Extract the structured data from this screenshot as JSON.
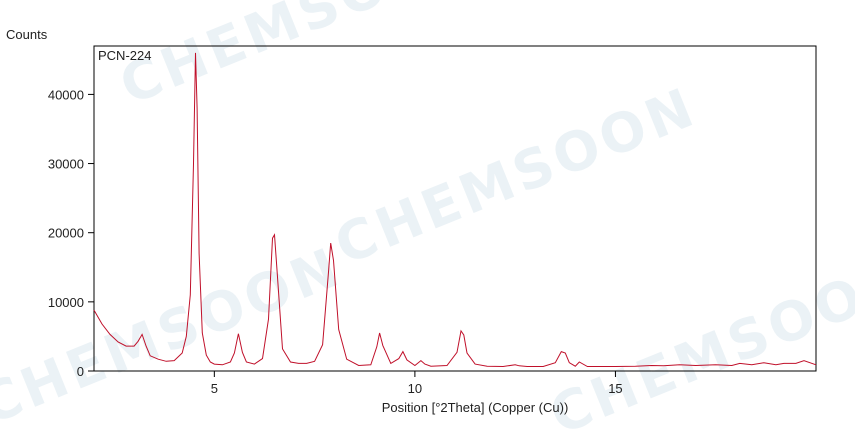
{
  "watermark": "CHEMSOON",
  "colors": {
    "line": "#c0102a",
    "axis": "#000000",
    "background": "#ffffff"
  },
  "chart_data": {
    "type": "line",
    "legend_label": "PCN-224",
    "legend_position": "top-left",
    "xlabel": "Position [°2Theta] (Copper (Cu))",
    "ylabel": "Counts",
    "xlim": [
      2.0,
      20.0
    ],
    "ylim": [
      0,
      47000
    ],
    "x_ticks": [
      5,
      10,
      15
    ],
    "y_ticks": [
      0,
      10000,
      20000,
      30000,
      40000
    ],
    "grid": false,
    "series": [
      {
        "name": "PCN-224",
        "x": [
          2.0,
          2.2,
          2.4,
          2.6,
          2.8,
          3.0,
          3.1,
          3.2,
          3.3,
          3.4,
          3.6,
          3.8,
          4.0,
          4.2,
          4.3,
          4.4,
          4.48,
          4.53,
          4.57,
          4.62,
          4.7,
          4.8,
          4.9,
          5.0,
          5.2,
          5.4,
          5.5,
          5.6,
          5.7,
          5.8,
          6.0,
          6.2,
          6.35,
          6.45,
          6.5,
          6.57,
          6.7,
          6.9,
          7.1,
          7.3,
          7.5,
          7.7,
          7.85,
          7.9,
          7.97,
          8.1,
          8.3,
          8.6,
          8.9,
          9.05,
          9.12,
          9.2,
          9.4,
          9.6,
          9.7,
          9.8,
          10.0,
          10.15,
          10.25,
          10.4,
          10.8,
          11.05,
          11.15,
          11.22,
          11.3,
          11.5,
          11.8,
          12.2,
          12.5,
          12.6,
          12.8,
          13.2,
          13.5,
          13.65,
          13.75,
          13.85,
          14.0,
          14.1,
          14.3,
          15.0,
          15.5,
          15.9,
          16.2,
          16.6,
          17.0,
          17.5,
          17.9,
          18.1,
          18.4,
          18.7,
          19.0,
          19.2,
          19.5,
          19.7,
          20.0
        ],
        "y": [
          8800,
          6800,
          5300,
          4200,
          3600,
          3600,
          4300,
          5300,
          3600,
          2200,
          1700,
          1400,
          1500,
          2600,
          5000,
          11000,
          30000,
          46000,
          38000,
          17000,
          5500,
          2300,
          1300,
          1000,
          900,
          1300,
          2600,
          5400,
          2700,
          1300,
          1000,
          1800,
          7500,
          19200,
          19700,
          14000,
          3200,
          1300,
          1100,
          1100,
          1400,
          3800,
          14500,
          18500,
          16000,
          6000,
          1700,
          800,
          900,
          3500,
          5500,
          3700,
          1100,
          1800,
          2800,
          1600,
          800,
          1500,
          1000,
          700,
          800,
          2700,
          5800,
          5200,
          2600,
          1000,
          700,
          650,
          900,
          750,
          650,
          650,
          1200,
          2800,
          2600,
          1200,
          700,
          1300,
          650,
          650,
          700,
          800,
          750,
          900,
          800,
          900,
          800,
          1100,
          900,
          1200,
          900,
          1100,
          1100,
          1500,
          900
        ]
      }
    ]
  }
}
